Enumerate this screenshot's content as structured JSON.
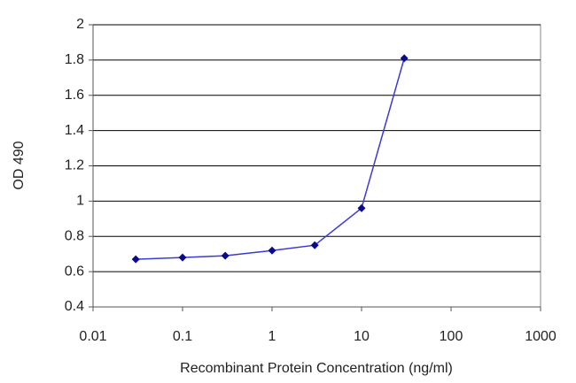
{
  "chart_data": {
    "type": "line",
    "x_label": "Recombinant Protein Concentration (ng/ml)",
    "y_label": "OD 490",
    "x": [
      0.03,
      0.1,
      0.3,
      1,
      3,
      10,
      30
    ],
    "series": [
      {
        "values": [
          0.67,
          0.68,
          0.69,
          0.72,
          0.75,
          0.96,
          1.81
        ],
        "color": "#3a3ad6",
        "marker_color": "#0a0a8c"
      }
    ],
    "xlim": [
      0.01,
      1000
    ],
    "xticks": [
      0.01,
      0.1,
      1,
      10,
      100,
      1000
    ],
    "x_log": true,
    "ylim": [
      0.4,
      2
    ],
    "yticks": [
      0.4,
      0.6,
      0.8,
      1,
      1.2,
      1.4,
      1.6,
      1.8,
      2
    ],
    "grid": true
  }
}
